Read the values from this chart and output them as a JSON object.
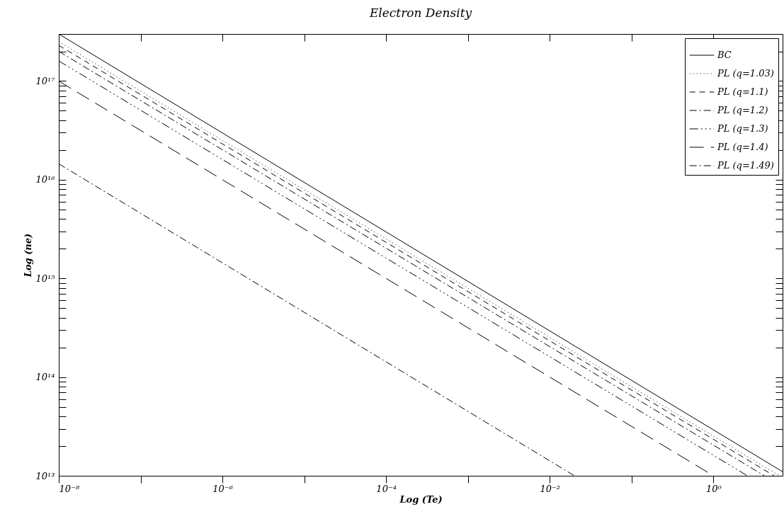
{
  "chart_data": {
    "type": "line",
    "title": "Electron Density",
    "xlabel": "Log (Te)",
    "ylabel": "Log (ne)",
    "log": "xy",
    "legend": "top right",
    "grid": false,
    "xlim": [
      1e-08,
      7
    ],
    "ylim": [
      10000000000000.0,
      3e+17
    ],
    "xticks": [
      {
        "value": 1e-08,
        "label": "10⁻⁸"
      },
      {
        "value": 1e-07,
        "label": null
      },
      {
        "value": 1e-06,
        "label": "10⁻⁶"
      },
      {
        "value": 1e-05,
        "label": null
      },
      {
        "value": 0.0001,
        "label": "10⁻⁴"
      },
      {
        "value": 0.001,
        "label": null
      },
      {
        "value": 0.01,
        "label": "10⁻²"
      },
      {
        "value": 0.1,
        "label": null
      },
      {
        "value": 1,
        "label": "10⁰"
      }
    ],
    "yticks": [
      {
        "value": 10000000000000.0,
        "label": "10¹³"
      },
      {
        "value": 20000000000000.0,
        "label": null
      },
      {
        "value": 30000000000000.0,
        "label": null
      },
      {
        "value": 40000000000000.0,
        "label": null
      },
      {
        "value": 50000000000000.0,
        "label": null
      },
      {
        "value": 60000000000000.0,
        "label": null
      },
      {
        "value": 70000000000000.0,
        "label": null
      },
      {
        "value": 80000000000000.0,
        "label": null
      },
      {
        "value": 90000000000000.0,
        "label": null
      },
      {
        "value": 100000000000000.0,
        "label": "10¹⁴"
      },
      {
        "value": 200000000000000.0,
        "label": null
      },
      {
        "value": 300000000000000.0,
        "label": null
      },
      {
        "value": 400000000000000.0,
        "label": null
      },
      {
        "value": 500000000000000.0,
        "label": null
      },
      {
        "value": 600000000000000.0,
        "label": null
      },
      {
        "value": 700000000000000.0,
        "label": null
      },
      {
        "value": 800000000000000.0,
        "label": null
      },
      {
        "value": 900000000000000.0,
        "label": null
      },
      {
        "value": 1000000000000000.0,
        "label": "10¹⁵"
      },
      {
        "value": 2000000000000000.0,
        "label": null
      },
      {
        "value": 3000000000000000.0,
        "label": null
      },
      {
        "value": 4000000000000000.0,
        "label": null
      },
      {
        "value": 5000000000000000.0,
        "label": null
      },
      {
        "value": 6000000000000000.0,
        "label": null
      },
      {
        "value": 7000000000000000.0,
        "label": null
      },
      {
        "value": 8000000000000000.0,
        "label": null
      },
      {
        "value": 9000000000000000.0,
        "label": null
      },
      {
        "value": 1e+16,
        "label": "10¹⁶"
      },
      {
        "value": 2e+16,
        "label": null
      },
      {
        "value": 3e+16,
        "label": null
      },
      {
        "value": 4e+16,
        "label": null
      },
      {
        "value": 5e+16,
        "label": null
      },
      {
        "value": 6e+16,
        "label": null
      },
      {
        "value": 7e+16,
        "label": null
      },
      {
        "value": 8e+16,
        "label": null
      },
      {
        "value": 9e+16,
        "label": null
      },
      {
        "value": 1e+17,
        "label": "10¹⁷"
      },
      {
        "value": 2e+17,
        "label": null
      },
      {
        "value": 3e+17,
        "label": null
      }
    ],
    "series": [
      {
        "name": "BC",
        "color": "#000000",
        "line_style": "solid",
        "x": [
          1e-08,
          7
        ],
        "values": [
          3e+17,
          11000000000000.0
        ]
      },
      {
        "name": "PL (q=1.03)",
        "color": "#000000",
        "line_style": "dotted",
        "x": [
          1e-08,
          6.4
        ],
        "values": [
          2.5e+17,
          10000000000000.0
        ]
      },
      {
        "name": "PL (q=1.1)",
        "color": "#000000",
        "line_style": "dashed",
        "x": [
          1e-08,
          5.5
        ],
        "values": [
          2.3e+17,
          10000000000000.0
        ]
      },
      {
        "name": "PL (q=1.2)",
        "color": "#000000",
        "line_style": "dashdot",
        "x": [
          1e-08,
          4.2
        ],
        "values": [
          2e+17,
          10000000000000.0
        ]
      },
      {
        "name": "PL (q=1.3)",
        "color": "#000000",
        "line_style": "dashdotdotdot",
        "x": [
          1e-08,
          2.6
        ],
        "values": [
          1.6e+17,
          10000000000000.0
        ]
      },
      {
        "name": "PL (q=1.4)",
        "color": "#000000",
        "line_style": "longdash",
        "x": [
          1e-08,
          1
        ],
        "values": [
          1e+17,
          10000000000000.0
        ]
      },
      {
        "name": "PL (q=1.49)",
        "color": "#000000",
        "line_style": "dashdot",
        "x": [
          1e-08,
          0.02
        ],
        "values": [
          1.45e+16,
          10000000000000.0
        ]
      }
    ]
  }
}
